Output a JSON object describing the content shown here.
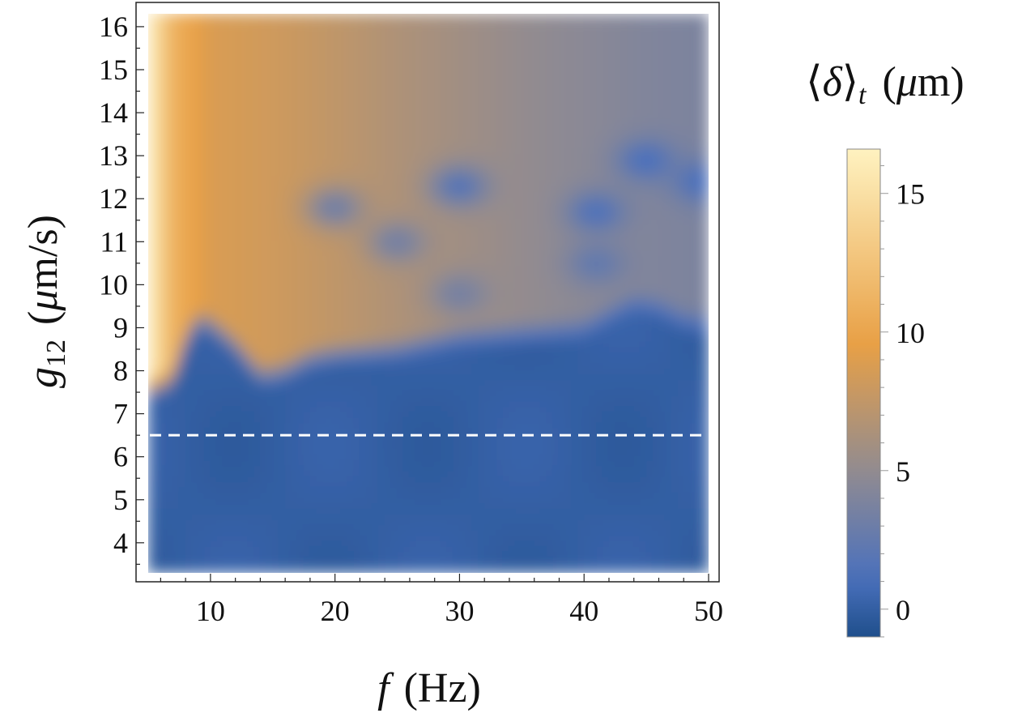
{
  "chart_data": {
    "type": "heatmap",
    "x_axis": {
      "label": "f",
      "unit": "(Hz)",
      "range": [
        5,
        50
      ],
      "ticks": [
        "10",
        "20",
        "30",
        "40",
        "50"
      ],
      "tick_values": [
        10,
        20,
        30,
        40,
        50
      ]
    },
    "y_axis": {
      "label_symbol": "g",
      "label_subscript": "12",
      "unit_open": "(",
      "unit_mu": "μ",
      "unit_rest": "m/s)",
      "range": [
        3.3,
        16.3
      ],
      "ticks": [
        "4",
        "5",
        "6",
        "7",
        "8",
        "9",
        "10",
        "11",
        "12",
        "13",
        "14",
        "15",
        "16"
      ],
      "tick_values": [
        4,
        5,
        6,
        7,
        8,
        9,
        10,
        11,
        12,
        13,
        14,
        15,
        16
      ]
    },
    "colorbar": {
      "label_open": "⟨",
      "label_delta": "δ",
      "label_close": "⟩",
      "label_sub": "t",
      "label_unit_open": "(",
      "label_unit_mu": "μ",
      "label_unit_rest": "m)",
      "range": [
        -1,
        16.6
      ],
      "ticks": [
        "0",
        "5",
        "10",
        "15"
      ],
      "tick_values": [
        0,
        5,
        10,
        15
      ],
      "colors": [
        "#1f4f8c",
        "#4a70bd",
        "#8e8a93",
        "#e8a046",
        "#fff2c0"
      ]
    },
    "reference_line": {
      "y": 6.5,
      "style": "dashed",
      "color": "#ffffff"
    },
    "boundary": {
      "description_free": false,
      "f": [
        5,
        6,
        7,
        8,
        9,
        10,
        12,
        14,
        16,
        18,
        20,
        25,
        30,
        35,
        40,
        42,
        44,
        46,
        48,
        50
      ],
      "g12": [
        7.3,
        7.4,
        7.5,
        8.4,
        8.9,
        8.8,
        8.3,
        7.6,
        7.7,
        8.0,
        8.1,
        8.2,
        8.5,
        8.6,
        8.7,
        9.0,
        9.3,
        9.2,
        8.9,
        8.8
      ]
    },
    "upper_values": {
      "f": [
        5,
        7,
        10,
        15,
        20,
        25,
        30,
        35,
        40,
        45,
        50
      ],
      "delta": [
        16.5,
        11,
        8.8,
        8.2,
        7.4,
        6.5,
        5.8,
        5.1,
        4.6,
        4.1,
        3.8
      ]
    },
    "low_pockets": [
      {
        "f": 30,
        "g12": 12.3,
        "delta": 1.5
      },
      {
        "f": 41,
        "g12": 11.7,
        "delta": 1.2
      },
      {
        "f": 45,
        "g12": 12.9,
        "delta": 1.0
      },
      {
        "f": 49.5,
        "g12": 12.4,
        "delta": 1.0
      },
      {
        "f": 20,
        "g12": 11.8,
        "delta": 3.0
      },
      {
        "f": 25,
        "g12": 11.0,
        "delta": 3.2
      },
      {
        "f": 41,
        "g12": 10.5,
        "delta": 2.3
      },
      {
        "f": 30,
        "g12": 9.8,
        "delta": 3.3
      }
    ],
    "below_value": 0.0
  }
}
